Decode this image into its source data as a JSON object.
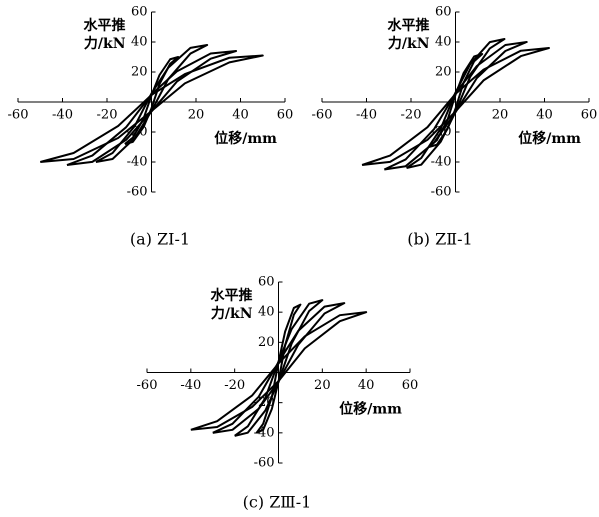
{
  "chart_data": [
    {
      "type": "line",
      "caption": "(a) ZⅠ-1",
      "ylabel_lines": [
        "水平推",
        "力/kN"
      ],
      "xlabel": "位移/mm",
      "xlim": [
        -60,
        60
      ],
      "ylim": [
        -60,
        60
      ],
      "xticks": [
        -60,
        -40,
        -20,
        20,
        40,
        60
      ],
      "yticks": [
        60,
        40,
        20,
        -20,
        -40,
        -60
      ],
      "series": [
        {
          "color": "#000000",
          "x": [
            -12,
            -8.4,
            -3.6,
            0,
            3.6,
            8.4,
            12,
            8.4,
            3.6,
            0,
            -3.6,
            -8.4,
            -12
          ],
          "values": [
            -28,
            -26.6,
            -16.8,
            -4.2,
            12,
            25.5,
            30,
            28.5,
            18,
            4.5,
            -11.2,
            -23.8,
            -28
          ]
        },
        {
          "color": "#000000",
          "x": [
            -25,
            -17.5,
            -7.5,
            0,
            7.5,
            17.5,
            25,
            17.5,
            7.5,
            0,
            -7.5,
            -17.5,
            -25
          ],
          "values": [
            -40,
            -38,
            -24,
            -6,
            15.2,
            32.3,
            38,
            36.1,
            22.8,
            5.7,
            -16,
            -34,
            -40
          ]
        },
        {
          "color": "#000000",
          "x": [
            -38,
            -26.6,
            -11.4,
            0,
            11.4,
            26.6,
            38,
            26.6,
            11.4,
            0,
            -11.4,
            -26.6,
            -38
          ],
          "values": [
            -42,
            -39.9,
            -25.2,
            -6.3,
            13.6,
            28.9,
            34,
            32.3,
            20.4,
            5.1,
            -16.8,
            -35.7,
            -42
          ]
        },
        {
          "color": "#000000",
          "x": [
            -50,
            -35,
            -15,
            0,
            15,
            35,
            50,
            35,
            15,
            0,
            -15,
            -35,
            -50
          ],
          "values": [
            -40,
            -38,
            -24,
            -6,
            12.4,
            26.4,
            31,
            29.5,
            18.6,
            4.7,
            -16,
            -34,
            -40
          ]
        }
      ]
    },
    {
      "type": "line",
      "caption": "(b) ZⅡ-1",
      "ylabel_lines": [
        "水平推",
        "力/kN"
      ],
      "xlabel": "位移/mm",
      "xlim": [
        -60,
        60
      ],
      "ylim": [
        -60,
        60
      ],
      "xticks": [
        -60,
        -40,
        -20,
        20,
        40,
        60
      ],
      "yticks": [
        60,
        40,
        20,
        -20,
        -40,
        -60
      ],
      "series": [
        {
          "color": "#000000",
          "x": [
            -12,
            -8.4,
            -3.6,
            0,
            3.6,
            8.4,
            12,
            8.4,
            3.6,
            0,
            -3.6,
            -8.4,
            -12
          ],
          "values": [
            -30,
            -28.5,
            -18,
            -4.5,
            12.8,
            27.2,
            32,
            30.4,
            19.2,
            4.8,
            -12,
            -25.5,
            -30
          ]
        },
        {
          "color": "#000000",
          "x": [
            -22,
            -15.4,
            -6.6,
            0,
            6.6,
            15.4,
            22,
            15.4,
            6.6,
            0,
            -6.6,
            -15.4,
            -22
          ],
          "values": [
            -44,
            -41.8,
            -26.4,
            -6.6,
            16.8,
            35.7,
            42,
            39.9,
            25.2,
            6.3,
            -17.6,
            -37.4,
            -44
          ]
        },
        {
          "color": "#000000",
          "x": [
            -32,
            -22.4,
            -9.6,
            0,
            9.6,
            22.4,
            32,
            22.4,
            9.6,
            0,
            -9.6,
            -22.4,
            -32
          ],
          "values": [
            -45,
            -42.8,
            -27,
            -6.8,
            16,
            34,
            40,
            38,
            24,
            6,
            -18,
            -38.3,
            -45
          ]
        },
        {
          "color": "#000000",
          "x": [
            -42,
            -29.4,
            -12.6,
            0,
            12.6,
            29.4,
            42,
            29.4,
            12.6,
            0,
            -12.6,
            -29.4,
            -42
          ],
          "values": [
            -42,
            -39.9,
            -25.2,
            -6.3,
            14.4,
            30.6,
            36,
            34.2,
            21.6,
            5.4,
            -16.8,
            -35.7,
            -42
          ]
        }
      ]
    },
    {
      "type": "line",
      "caption": "(c) ZⅢ-1",
      "ylabel_lines": [
        "水平推",
        "力/kN"
      ],
      "xlabel": "位移/mm",
      "xlim": [
        -60,
        60
      ],
      "ylim": [
        -60,
        60
      ],
      "xticks": [
        -60,
        -40,
        -20,
        20,
        40,
        60
      ],
      "yticks": [
        60,
        40,
        20,
        -20,
        -40,
        -60
      ],
      "series": [
        {
          "color": "#000000",
          "x": [
            -10,
            -7,
            -3,
            0,
            3,
            7,
            10,
            7,
            3,
            0,
            -3,
            -7,
            -10
          ],
          "values": [
            -40,
            -38,
            -24,
            -6,
            18,
            38.3,
            45,
            42.8,
            27,
            6.8,
            -16,
            -34,
            -40
          ]
        },
        {
          "color": "#000000",
          "x": [
            -20,
            -14,
            -6,
            0,
            6,
            14,
            20,
            14,
            6,
            0,
            -6,
            -14,
            -20
          ],
          "values": [
            -42,
            -39.9,
            -25.2,
            -6.3,
            19.2,
            40.8,
            48,
            45.6,
            28.8,
            7.2,
            -16.8,
            -35.7,
            -42
          ]
        },
        {
          "color": "#000000",
          "x": [
            -30,
            -21,
            -9,
            0,
            9,
            21,
            30,
            21,
            9,
            0,
            -9,
            -21,
            -30
          ],
          "values": [
            -40,
            -38,
            -24,
            -6,
            18.4,
            39.1,
            46,
            43.7,
            27.6,
            6.9,
            -16,
            -34,
            -40
          ]
        },
        {
          "color": "#000000",
          "x": [
            -40,
            -28,
            -12,
            0,
            12,
            28,
            40,
            28,
            12,
            0,
            -12,
            -28,
            -40
          ],
          "values": [
            -38,
            -36.1,
            -22.8,
            -5.7,
            16,
            34,
            40,
            38,
            24,
            6,
            -15.2,
            -32.3,
            -38
          ]
        }
      ]
    }
  ]
}
